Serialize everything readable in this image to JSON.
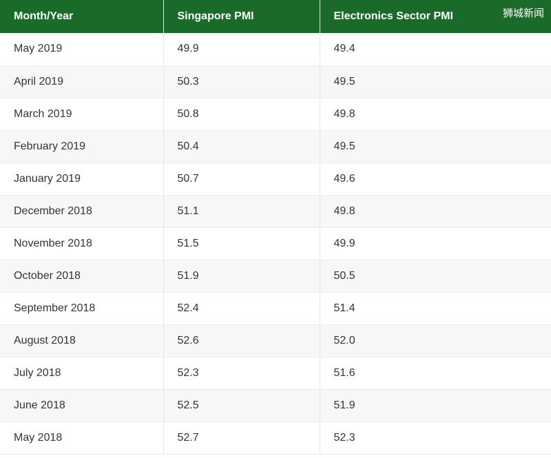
{
  "colors": {
    "header_bg": "#1a6b2a",
    "header_text": "#ffffff",
    "row_alt_bg": "#f7f7f7",
    "row_bg": "#ffffff",
    "text": "#333333"
  },
  "watermark": "狮城新闻",
  "chart_data": {
    "type": "table",
    "columns": [
      "Month/Year",
      "Singapore PMI",
      "Electronics Sector PMI"
    ],
    "rows": [
      [
        "May 2019",
        "49.9",
        "49.4"
      ],
      [
        "April 2019",
        "50.3",
        "49.5"
      ],
      [
        "March 2019",
        "50.8",
        "49.8"
      ],
      [
        "February 2019",
        "50.4",
        "49.5"
      ],
      [
        "January 2019",
        "50.7",
        "49.6"
      ],
      [
        "December 2018",
        "51.1",
        "49.8"
      ],
      [
        "November 2018",
        "51.5",
        "49.9"
      ],
      [
        "October 2018",
        "51.9",
        "50.5"
      ],
      [
        "September 2018",
        "52.4",
        "51.4"
      ],
      [
        "August 2018",
        "52.6",
        "52.0"
      ],
      [
        "July 2018",
        "52.3",
        "51.6"
      ],
      [
        "June 2018",
        "52.5",
        "51.9"
      ],
      [
        "May 2018",
        "52.7",
        "52.3"
      ]
    ]
  }
}
